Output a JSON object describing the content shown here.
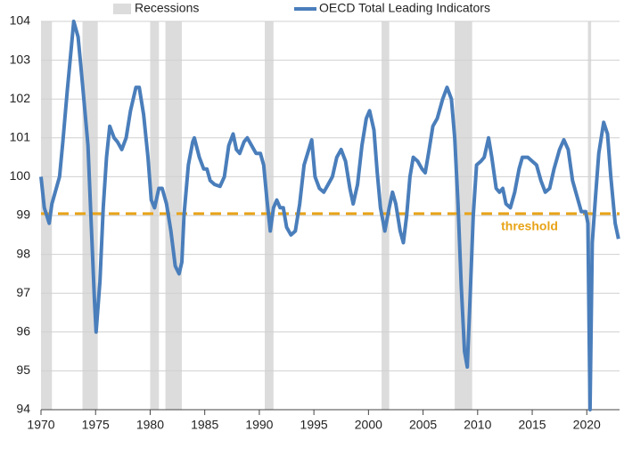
{
  "chart_data": {
    "type": "line",
    "recessions": {
      "name": "Recessions",
      "color": "#dcdcdc",
      "spans": [
        [
          1970.0,
          1971.0
        ],
        [
          1973.8,
          1975.2
        ],
        [
          1980.0,
          1980.8
        ],
        [
          1981.4,
          1982.9
        ],
        [
          1990.5,
          1991.3
        ],
        [
          2001.2,
          2001.9
        ],
        [
          2007.9,
          2009.5
        ],
        [
          2020.1,
          2020.4
        ]
      ]
    },
    "series": [
      {
        "name": "OECD Total Leading Indicators",
        "color": "#4a7ebb",
        "x": [
          1970.0,
          1970.3,
          1970.75,
          1971.0,
          1971.3,
          1971.7,
          1972.0,
          1972.4,
          1972.8,
          1973.0,
          1973.4,
          1973.8,
          1974.3,
          1974.6,
          1974.9,
          1975.05,
          1975.4,
          1975.7,
          1976.0,
          1976.3,
          1976.7,
          1977.0,
          1977.4,
          1977.8,
          1978.2,
          1978.7,
          1979.0,
          1979.4,
          1979.8,
          1980.1,
          1980.4,
          1980.8,
          1981.1,
          1981.5,
          1981.9,
          1982.3,
          1982.65,
          1982.9,
          1983.1,
          1983.5,
          1983.9,
          1984.05,
          1984.5,
          1984.9,
          1985.2,
          1985.5,
          1985.9,
          1986.4,
          1986.8,
          1987.2,
          1987.6,
          1987.9,
          1988.2,
          1988.6,
          1988.9,
          1989.3,
          1989.7,
          1990.1,
          1990.4,
          1990.7,
          1991.0,
          1991.3,
          1991.6,
          1991.9,
          1992.2,
          1992.5,
          1992.9,
          1993.3,
          1993.7,
          1994.1,
          1994.8,
          1995.1,
          1995.5,
          1995.9,
          1996.3,
          1996.7,
          1997.1,
          1997.5,
          1997.9,
          1998.3,
          1998.6,
          1999.0,
          1999.4,
          1999.8,
          2000.1,
          2000.5,
          2000.8,
          2001.1,
          2001.5,
          2001.9,
          2002.2,
          2002.5,
          2002.9,
          2003.2,
          2003.5,
          2003.8,
          2004.1,
          2004.5,
          2004.9,
          2005.2,
          2005.5,
          2005.9,
          2006.3,
          2006.8,
          2007.2,
          2007.6,
          2007.9,
          2008.2,
          2008.5,
          2008.8,
          2009.05,
          2009.3,
          2009.6,
          2009.9,
          2010.3,
          2010.6,
          2011.0,
          2011.3,
          2011.7,
          2012.0,
          2012.3,
          2012.6,
          2013.0,
          2013.4,
          2013.8,
          2014.1,
          2014.6,
          2015.0,
          2015.4,
          2015.8,
          2016.2,
          2016.6,
          2017.0,
          2017.5,
          2017.9,
          2018.3,
          2018.7,
          2019.1,
          2019.5,
          2019.9,
          2020.1,
          2020.3,
          2020.5,
          2020.8,
          2021.1,
          2021.55,
          2021.9,
          2022.2,
          2022.6,
          2022.9
        ],
        "values": [
          100.0,
          99.2,
          98.8,
          99.3,
          99.6,
          100.0,
          100.9,
          102.2,
          103.4,
          104.0,
          103.6,
          102.4,
          100.8,
          98.8,
          96.8,
          96.0,
          97.3,
          99.2,
          100.5,
          101.3,
          101.0,
          100.9,
          100.7,
          101.0,
          101.7,
          102.3,
          102.3,
          101.6,
          100.5,
          99.4,
          99.2,
          99.7,
          99.7,
          99.3,
          98.6,
          97.7,
          97.5,
          97.8,
          99.0,
          100.3,
          100.9,
          101.0,
          100.5,
          100.2,
          100.2,
          99.9,
          99.8,
          99.75,
          100.0,
          100.8,
          101.1,
          100.7,
          100.6,
          100.9,
          101.0,
          100.8,
          100.6,
          100.6,
          100.3,
          99.4,
          98.6,
          99.2,
          99.4,
          99.2,
          99.2,
          98.7,
          98.5,
          98.6,
          99.3,
          100.3,
          100.95,
          100.0,
          99.7,
          99.6,
          99.8,
          100.0,
          100.5,
          100.7,
          100.4,
          99.7,
          99.3,
          99.8,
          100.8,
          101.5,
          101.7,
          101.2,
          100.1,
          99.2,
          98.6,
          99.2,
          99.6,
          99.3,
          98.6,
          98.3,
          99.0,
          100.0,
          100.5,
          100.4,
          100.2,
          100.1,
          100.6,
          101.3,
          101.5,
          102.0,
          102.3,
          102.0,
          101.0,
          99.3,
          97.2,
          95.5,
          95.1,
          96.8,
          99.0,
          100.3,
          100.4,
          100.5,
          101.0,
          100.5,
          99.7,
          99.6,
          99.7,
          99.3,
          99.2,
          99.6,
          100.2,
          100.5,
          100.5,
          100.4,
          100.3,
          99.9,
          99.6,
          99.7,
          100.2,
          100.7,
          100.95,
          100.7,
          99.9,
          99.5,
          99.1,
          99.1,
          98.8,
          94.0,
          98.3,
          99.5,
          100.6,
          101.4,
          101.1,
          100.0,
          98.8,
          98.4
        ]
      }
    ],
    "threshold": {
      "value": 99.05,
      "label": "threshold",
      "color": "#e8a317"
    },
    "xlim": [
      1970,
      2023
    ],
    "xticks": [
      1970,
      1975,
      1980,
      1985,
      1990,
      1995,
      2000,
      2005,
      2010,
      2015,
      2020
    ],
    "ylim": [
      94,
      104
    ],
    "yticks": [
      94,
      95,
      96,
      97,
      98,
      99,
      100,
      101,
      102,
      103,
      104
    ],
    "grid": true
  }
}
